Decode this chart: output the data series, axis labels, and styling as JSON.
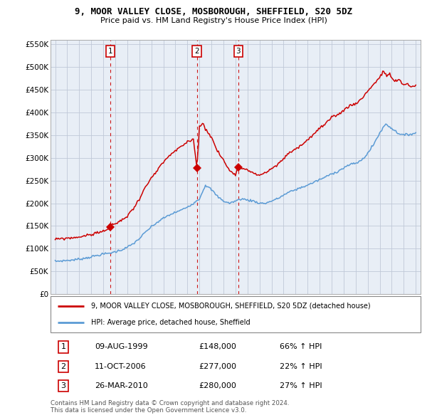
{
  "title": "9, MOOR VALLEY CLOSE, MOSBOROUGH, SHEFFIELD, S20 5DZ",
  "subtitle": "Price paid vs. HM Land Registry's House Price Index (HPI)",
  "ylabel_ticks": [
    "£0",
    "£50K",
    "£100K",
    "£150K",
    "£200K",
    "£250K",
    "£300K",
    "£350K",
    "£400K",
    "£450K",
    "£500K",
    "£550K"
  ],
  "ytick_values": [
    0,
    50000,
    100000,
    150000,
    200000,
    250000,
    300000,
    350000,
    400000,
    450000,
    500000,
    550000
  ],
  "ylim": [
    0,
    560000
  ],
  "xlim_left": 1994.6,
  "xlim_right": 2025.4,
  "sale_years": [
    1999.6,
    2006.79,
    2010.23
  ],
  "sale_prices": [
    148000,
    277000,
    280000
  ],
  "sale_labels": [
    "1",
    "2",
    "3"
  ],
  "legend_line1": "9, MOOR VALLEY CLOSE, MOSBOROUGH, SHEFFIELD, S20 5DZ (detached house)",
  "legend_line2": "HPI: Average price, detached house, Sheffield",
  "table_rows": [
    [
      "1",
      "09-AUG-1999",
      "£148,000",
      "66% ↑ HPI"
    ],
    [
      "2",
      "11-OCT-2006",
      "£277,000",
      "22% ↑ HPI"
    ],
    [
      "3",
      "26-MAR-2010",
      "£280,000",
      "27% ↑ HPI"
    ]
  ],
  "footer_line1": "Contains HM Land Registry data © Crown copyright and database right 2024.",
  "footer_line2": "This data is licensed under the Open Government Licence v3.0.",
  "red_color": "#cc0000",
  "blue_color": "#5b9bd5",
  "chart_bg": "#e8eef6",
  "grid_color": "#c0c8d8",
  "background_color": "#ffffff"
}
